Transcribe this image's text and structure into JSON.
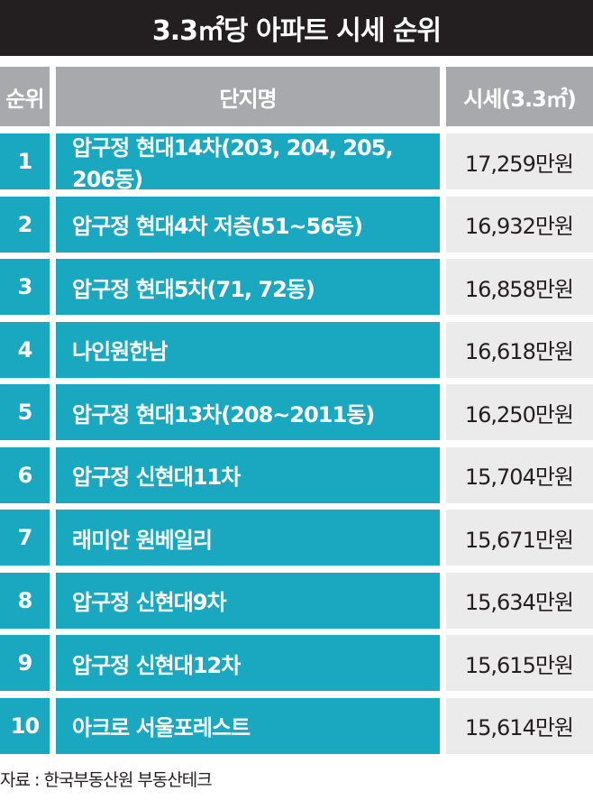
{
  "title": "3.3㎡당 아파트 시세 순위",
  "header": {
    "rank": "순위",
    "name": "단지명",
    "price": "시세(3.3㎡)"
  },
  "rows": [
    {
      "rank": "1",
      "name": "압구정 현대14차(203, 204, 205, 206동)",
      "price": "17,259만원"
    },
    {
      "rank": "2",
      "name": "압구정 현대4차 저층(51~56동)",
      "price": "16,932만원"
    },
    {
      "rank": "3",
      "name": "압구정 현대5차(71, 72동)",
      "price": "16,858만원"
    },
    {
      "rank": "4",
      "name": "나인원한남",
      "price": "16,618만원"
    },
    {
      "rank": "5",
      "name": "압구정 현대13차(208~2011동)",
      "price": "16,250만원"
    },
    {
      "rank": "6",
      "name": "압구정 신현대11차",
      "price": "15,704만원"
    },
    {
      "rank": "7",
      "name": "래미안 원베일리",
      "price": "15,671만원"
    },
    {
      "rank": "8",
      "name": "압구정 신현대9차",
      "price": "15,634만원"
    },
    {
      "rank": "9",
      "name": "압구정 신현대12차",
      "price": "15,615만원"
    },
    {
      "rank": "10",
      "name": "아크로 서울포레스트",
      "price": "15,614만원"
    }
  ],
  "source": "자료 : 한국부동산원 부동산테크",
  "colors": {
    "title_bg": "#231f20",
    "header_bg": "#a7a9ac",
    "accent": "#1aa8c0",
    "price_bg": "#ebebeb"
  }
}
